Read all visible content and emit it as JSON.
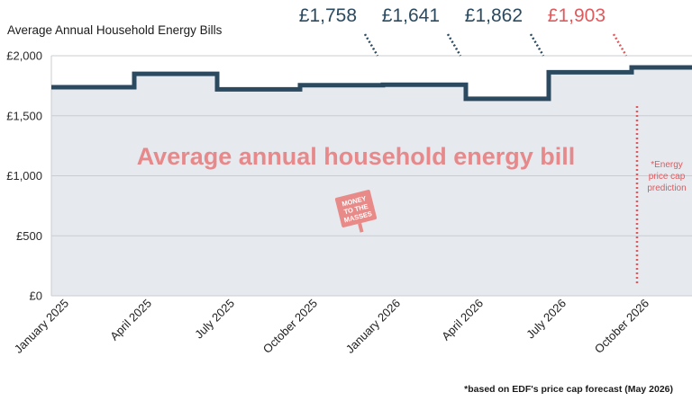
{
  "chart_data": {
    "type": "line",
    "title": "Average Annual Household Energy Bills",
    "ylim": [
      0,
      2000
    ],
    "yticks": [
      {
        "value": 0,
        "label": "£0"
      },
      {
        "value": 500,
        "label": "£500"
      },
      {
        "value": 1000,
        "label": "£1,000"
      },
      {
        "value": 1500,
        "label": "£1,500"
      },
      {
        "value": 2000,
        "label": "£2,000"
      }
    ],
    "x_tick_labels": [
      "January 2025",
      "April 2025",
      "July 2025",
      "October 2025",
      "January 2026",
      "April 2026",
      "July 2026",
      "October 2026"
    ],
    "step_values": [
      1738,
      1849,
      1720,
      1755,
      1758,
      1641,
      1862,
      1903
    ],
    "grid": true,
    "watermark": "Average annual household energy bill",
    "callouts": [
      {
        "label": "£1,758",
        "quarter": 4,
        "color": "#2b4a60"
      },
      {
        "label": "£1,641",
        "quarter": 5,
        "color": "#2b4a60"
      },
      {
        "label": "£1,862",
        "quarter": 6,
        "color": "#2b4a60"
      },
      {
        "label": "£1,903",
        "quarter": 7,
        "color": "#e0595d"
      }
    ],
    "prediction_note": [
      "*Energy",
      "price cap",
      "prediction"
    ],
    "footnote": "*based on EDF's price cap forecast (May 2026)",
    "logo_lines": [
      "MONEY",
      "TO THE",
      "MASSES"
    ],
    "colors": {
      "line": "#2b4a60",
      "area": "#e6e9ee",
      "grid": "#c9ccd1",
      "prediction": "#e0595d",
      "watermark": "#e7898a",
      "logo": "#e88a88"
    }
  }
}
